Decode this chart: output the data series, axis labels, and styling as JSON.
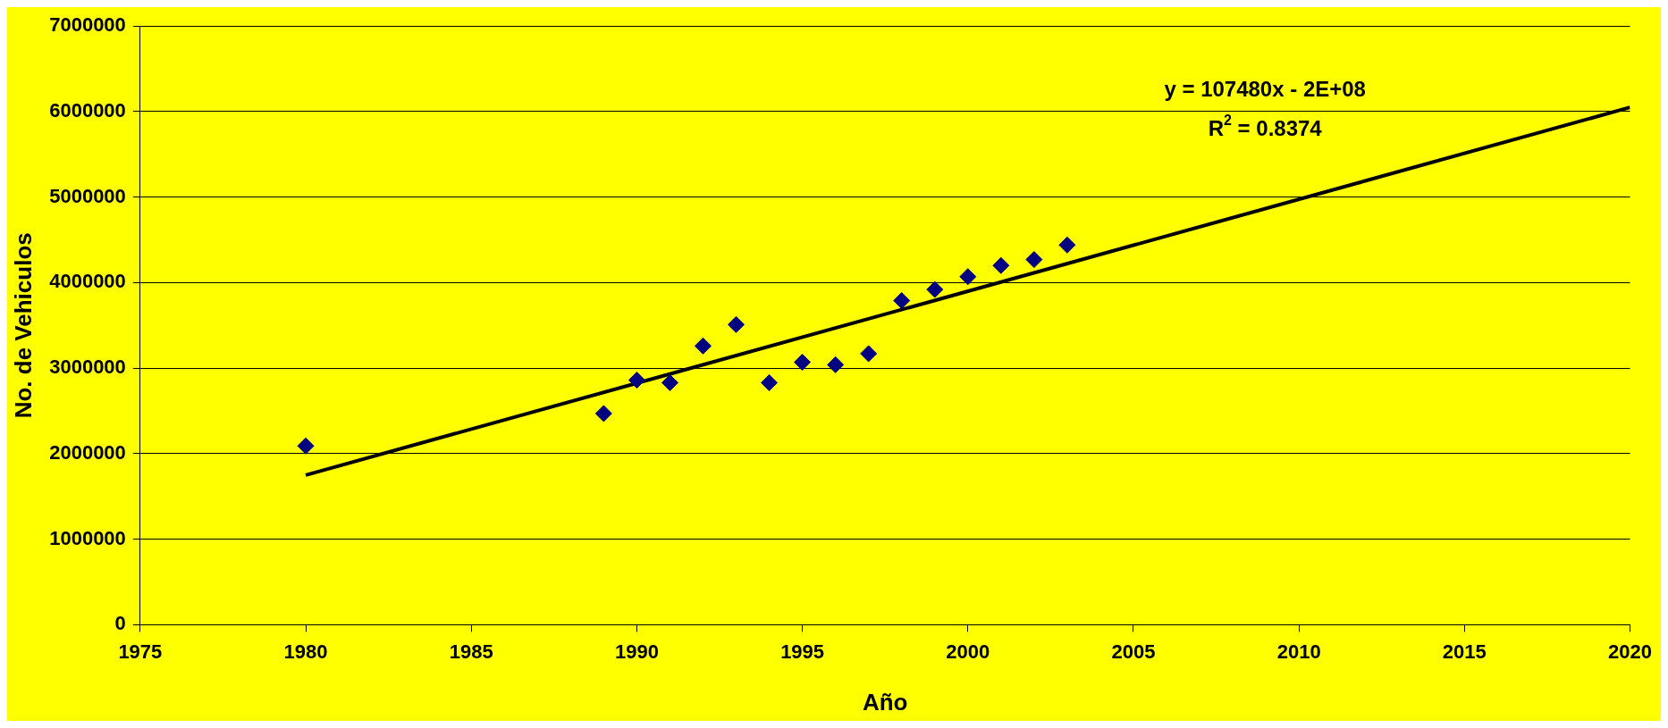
{
  "chart_data": {
    "type": "scatter",
    "xlabel": "Año",
    "ylabel": "No. de Vehiculos",
    "x": [
      1980,
      1989,
      1990,
      1991,
      1992,
      1993,
      1994,
      1995,
      1996,
      1997,
      1998,
      1999,
      2000,
      2001,
      2002,
      2003
    ],
    "series": [
      {
        "type": "scatter",
        "color": "#000080",
        "marker": "diamond",
        "values": [
          2090000,
          2470000,
          2860000,
          2830000,
          3260000,
          3510000,
          2830000,
          3070000,
          3040000,
          3170000,
          3790000,
          3920000,
          4070000,
          4200000,
          4270000,
          4440000
        ]
      },
      {
        "type": "line",
        "color": "#000000",
        "marker": "none",
        "line_style": "solid",
        "x": [
          1980,
          2020
        ],
        "values": [
          1750000,
          6050000
        ]
      }
    ],
    "xlim": [
      1975,
      2020
    ],
    "xticks": [
      1975,
      1980,
      1985,
      1990,
      1995,
      2000,
      2005,
      2010,
      2015,
      2020
    ],
    "ylim": [
      0,
      7000000
    ],
    "yticks": [
      0,
      1000000,
      2000000,
      3000000,
      4000000,
      5000000,
      6000000,
      7000000
    ],
    "grid": "y",
    "legend": false,
    "annotations": [
      "y = 107480x - 2E+08",
      "R$^{2}$ = 0.8374"
    ]
  }
}
